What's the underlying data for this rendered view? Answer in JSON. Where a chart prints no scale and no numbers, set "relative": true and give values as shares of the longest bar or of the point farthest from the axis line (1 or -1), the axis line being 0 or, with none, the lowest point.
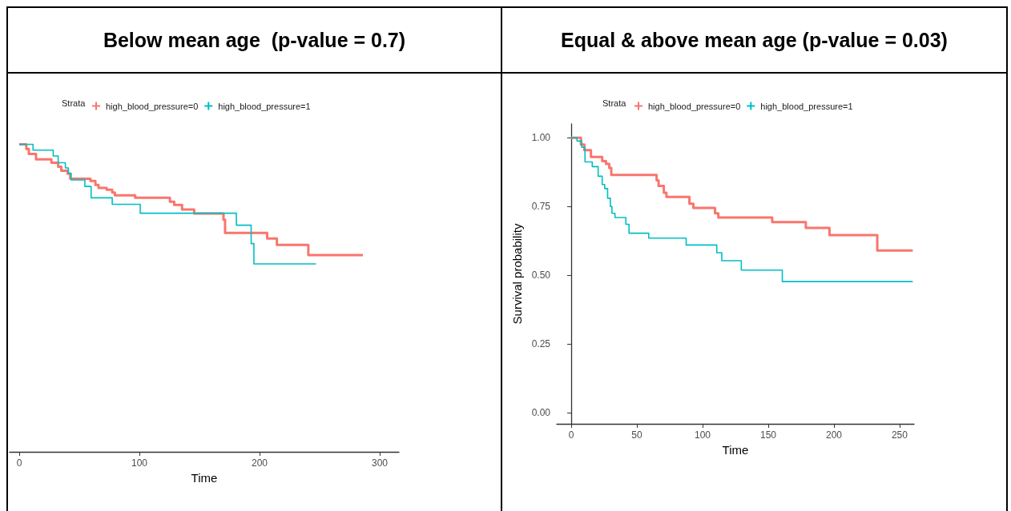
{
  "chart_data": [
    {
      "type": "step",
      "title": "Below mean age  (p-value = 0.7)",
      "xlabel": "Time",
      "legend_title": "Strata",
      "legend": "top",
      "grid": false,
      "marker": "none",
      "relative": true,
      "tick_labels": "x",
      "xlim": [
        -8,
        316
      ],
      "xticks": [
        0,
        100,
        200,
        300
      ],
      "series": [
        {
          "name": "high_blood_pressure=0",
          "color": "#f8766d",
          "x": [
            0,
            5.9,
            8,
            14,
            26.8,
            32.4,
            35,
            40.3,
            42.5,
            59.3,
            63.4,
            66,
            72.8,
            77.4,
            79.6,
            96.5,
            125.4,
            129,
            135.5,
            145.6,
            170,
            171.3,
            206.3,
            214.4,
            240.6,
            286
          ],
          "values": [
            1,
            0.985,
            0.969,
            0.951,
            0.94,
            0.927,
            0.914,
            0.904,
            0.888,
            0.881,
            0.868,
            0.858,
            0.852,
            0.843,
            0.834,
            0.826,
            0.813,
            0.803,
            0.788,
            0.775,
            0.755,
            0.712,
            0.694,
            0.673,
            0.64,
            0.64
          ]
        },
        {
          "name": "high_blood_pressure=1",
          "color": "#00bfc4",
          "x": [
            0,
            11.5,
            28.3,
            32.4,
            38.4,
            40.9,
            43.2,
            54.6,
            59.8,
            77.4,
            100.7,
            180.7,
            193,
            195.3,
            247
          ],
          "values": [
            1,
            0.981,
            0.962,
            0.94,
            0.923,
            0.906,
            0.884,
            0.863,
            0.826,
            0.805,
            0.776,
            0.737,
            0.677,
            0.611,
            0.611
          ]
        }
      ]
    },
    {
      "type": "step",
      "title": "Equal & above mean age (p-value = 0.03)",
      "xlabel": "Time",
      "ylabel": "Survival probability",
      "legend_title": "Strata",
      "legend": "top",
      "grid": false,
      "marker": "none",
      "xlim": [
        -11,
        261
      ],
      "xticks": [
        0,
        50,
        100,
        150,
        200,
        250
      ],
      "ylim": [
        -0.04,
        1.05
      ],
      "yticks": [
        {
          "value": 0,
          "label": "0.00"
        },
        {
          "value": 0.25,
          "label": "0.25"
        },
        {
          "value": 0.5,
          "label": "0.50"
        },
        {
          "value": 0.75,
          "label": "0.75"
        },
        {
          "value": 1,
          "label": "1.00"
        }
      ],
      "series": [
        {
          "name": "high_blood_pressure=0",
          "color": "#f8766d",
          "x": [
            0,
            7.4,
            10,
            15,
            23.6,
            26.5,
            29,
            30.5,
            65,
            66.5,
            70.5,
            72.5,
            90,
            93,
            109.5,
            112,
            153,
            178.6,
            196.6,
            233,
            260
          ],
          "values": [
            1,
            0.975,
            0.955,
            0.93,
            0.915,
            0.905,
            0.89,
            0.865,
            0.845,
            0.825,
            0.8,
            0.785,
            0.76,
            0.745,
            0.725,
            0.71,
            0.693,
            0.672,
            0.646,
            0.59,
            0.59
          ]
        },
        {
          "name": "high_blood_pressure=1",
          "color": "#00bfc4",
          "x": [
            0,
            4.4,
            8,
            10.5,
            16,
            20.5,
            23.6,
            25.5,
            27.7,
            29.8,
            31,
            33.3,
            41.6,
            44,
            59,
            87.5,
            110.8,
            114.6,
            129.5,
            160.7,
            260
          ],
          "values": [
            1,
            0.988,
            0.965,
            0.912,
            0.895,
            0.86,
            0.83,
            0.815,
            0.78,
            0.75,
            0.725,
            0.71,
            0.685,
            0.653,
            0.635,
            0.61,
            0.582,
            0.553,
            0.519,
            0.477,
            0.477
          ]
        }
      ]
    }
  ]
}
